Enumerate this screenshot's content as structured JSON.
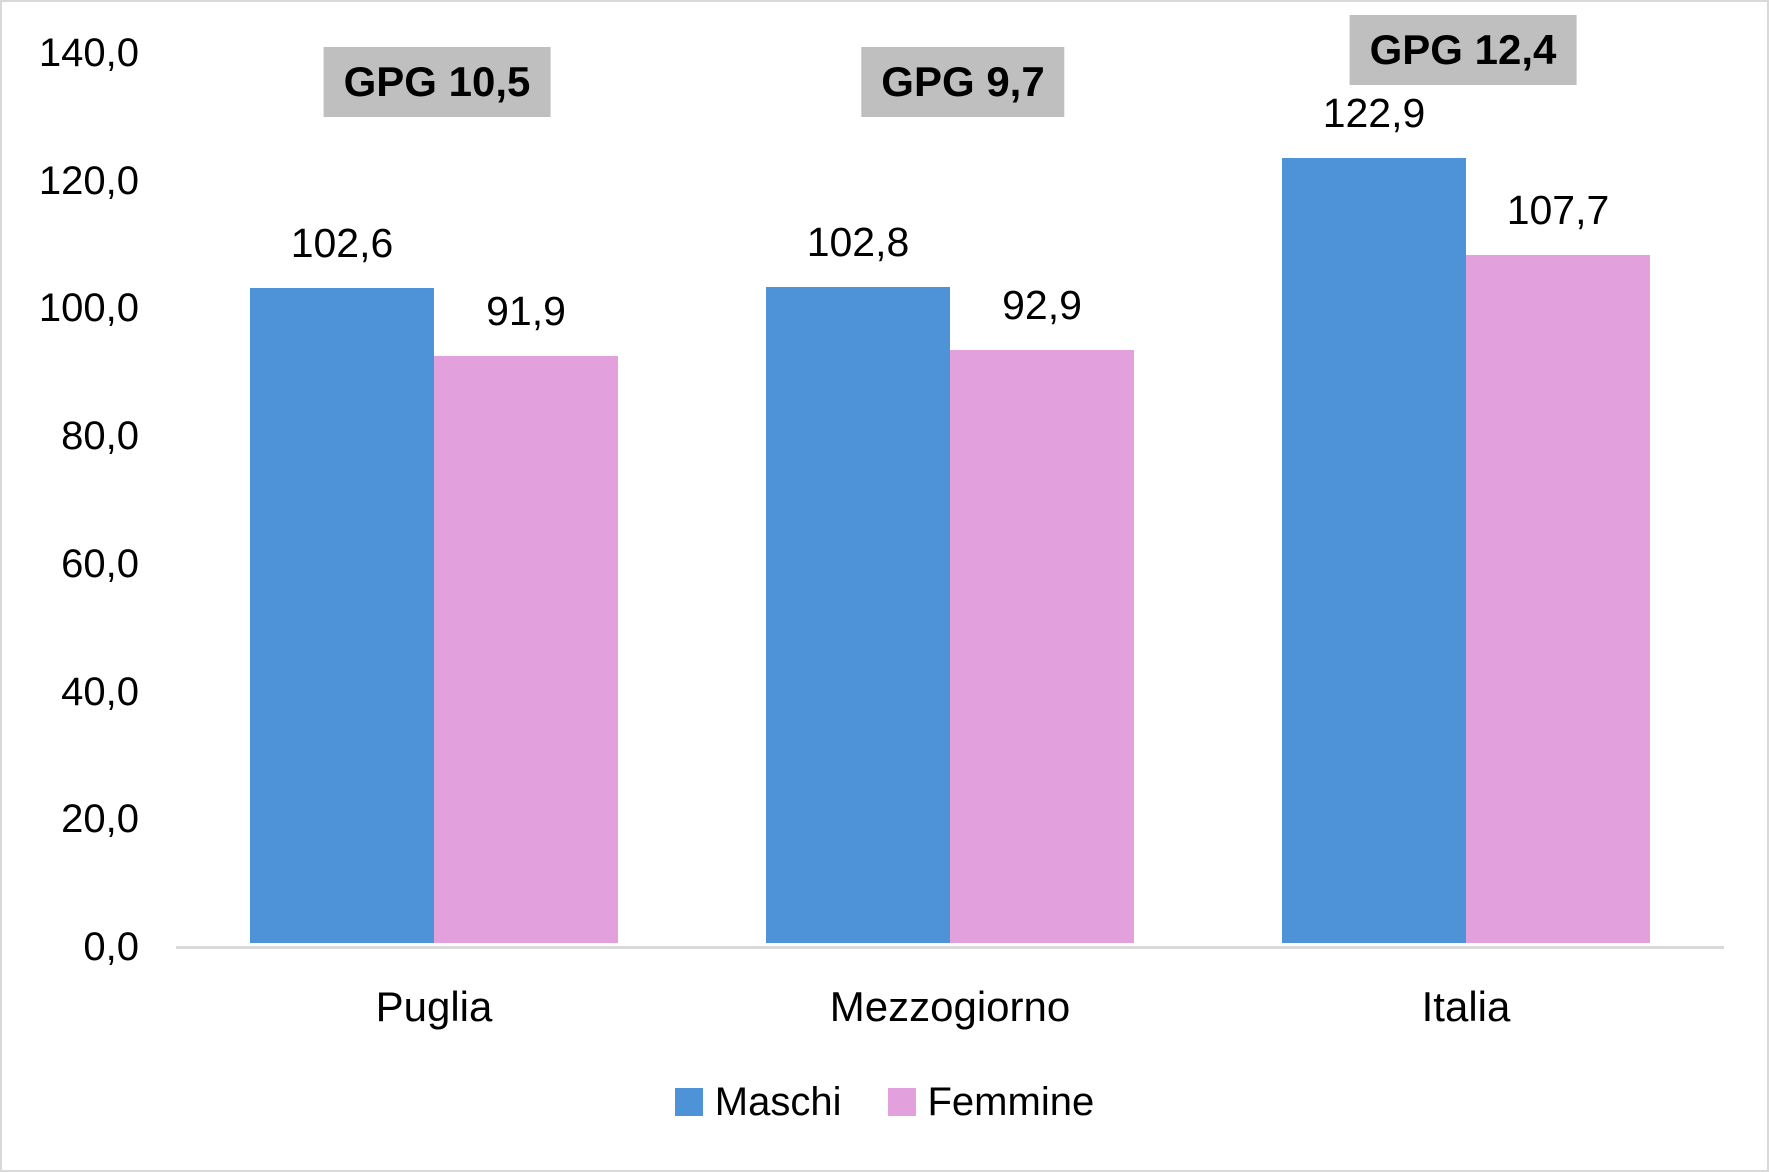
{
  "chart_data": {
    "type": "bar",
    "categories": [
      "Puglia",
      "Mezzogiorno",
      "Italia"
    ],
    "series": [
      {
        "name": "Maschi",
        "color": "#4E93D8",
        "values": [
          102.6,
          102.8,
          122.9
        ],
        "labels": [
          "102,6",
          "102,8",
          "122,9"
        ]
      },
      {
        "name": "Femmine",
        "color": "#E2A0DD",
        "values": [
          91.9,
          92.9,
          107.7
        ],
        "labels": [
          "91,9",
          "92,9",
          "107,7"
        ]
      }
    ],
    "annotations": [
      {
        "label": "GPG 10,5",
        "category": "Puglia"
      },
      {
        "label": "GPG 9,7",
        "category": "Mezzogiorno"
      },
      {
        "label": "GPG 12,4",
        "category": "Italia"
      }
    ],
    "y_axis": {
      "min": 0,
      "max": 140,
      "step": 20,
      "tick_labels": [
        "0,0",
        "20,0",
        "40,0",
        "60,0",
        "80,0",
        "100,0",
        "120,0",
        "140,0"
      ]
    },
    "legend": {
      "position": "bottom",
      "items": [
        "Maschi",
        "Femmine"
      ]
    },
    "colors": {
      "annotation_bg": "#BFBFBF",
      "axis_line": "#D9D9D9",
      "text": "#000000",
      "background": "#FFFFFF"
    },
    "grid": false,
    "title": "",
    "xlabel": "",
    "ylabel": ""
  }
}
